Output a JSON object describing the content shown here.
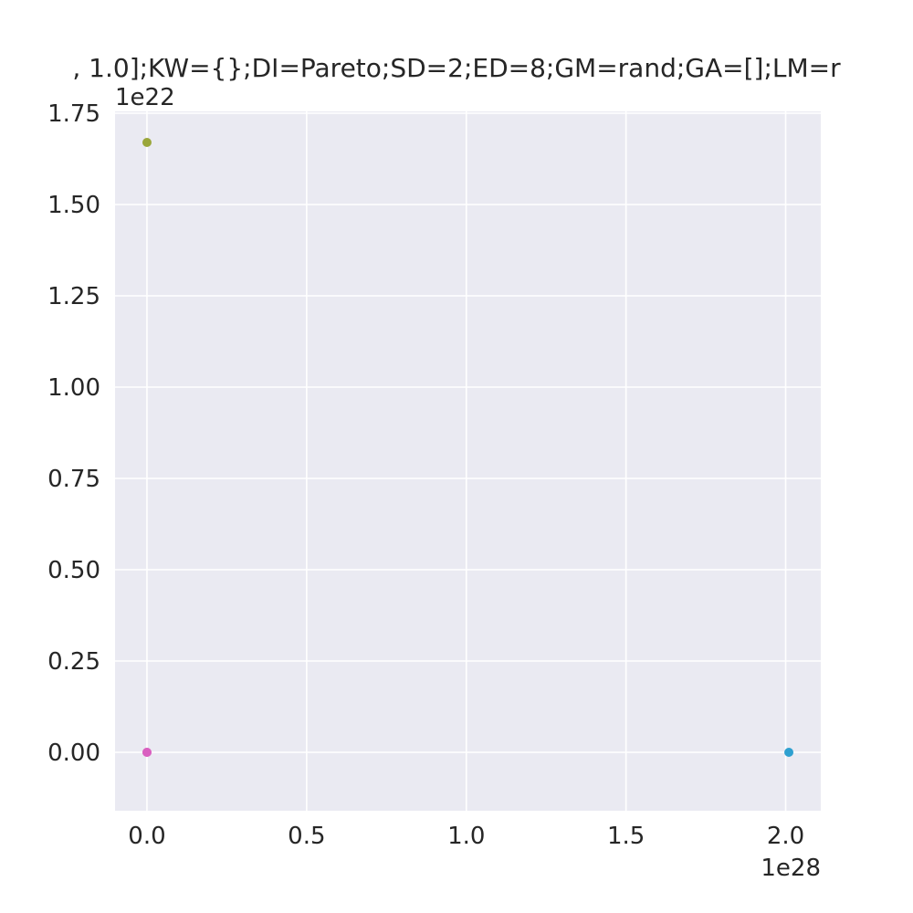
{
  "chart_data": {
    "type": "scatter",
    "title": ", 1.0];KW={};DI=Pareto;SD=2;ED=8;GM=rand;GA=[];LM=r",
    "xlabel": "",
    "ylabel": "",
    "x_offset_label": "1e28",
    "y_offset_label": "1e22",
    "x_scale": 1e+28,
    "y_scale": 1e+22,
    "xlim": [
      -1e+27,
      2.11e+28
    ],
    "ylim": [
      -1.6e+21,
      1.755e+22
    ],
    "x_ticks": [
      0.0,
      0.5,
      1.0,
      1.5,
      2.0
    ],
    "x_tick_labels": [
      "0.0",
      "0.5",
      "1.0",
      "1.5",
      "2.0"
    ],
    "y_ticks": [
      0.0,
      0.25,
      0.5,
      0.75,
      1.0,
      1.25,
      1.5,
      1.75
    ],
    "y_tick_labels": [
      "0.00",
      "0.25",
      "0.50",
      "0.75",
      "1.00",
      "1.25",
      "1.50",
      "1.75"
    ],
    "grid": true,
    "background": "#eaeaf2",
    "grid_color": "#ffffff",
    "points": [
      {
        "x": 0.0,
        "y": 1.67e+22,
        "color": "#9aa63a"
      },
      {
        "x": 0.0,
        "y": 0.0,
        "color": "#e377c2"
      },
      {
        "x": 0.0,
        "y": 0.0,
        "color": "#d95fc0"
      },
      {
        "x": 2.01e+28,
        "y": 0.0,
        "color": "#2ea0d0"
      }
    ]
  }
}
